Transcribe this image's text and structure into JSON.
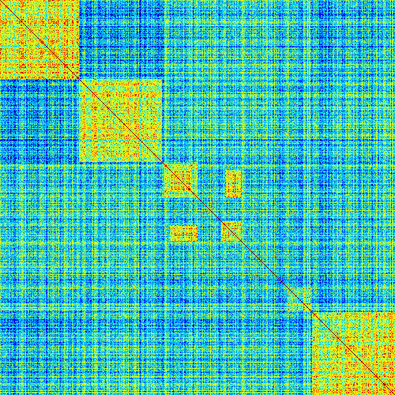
{
  "chart_data": {
    "type": "heatmap",
    "title": "",
    "xlabel": "",
    "ylabel": "",
    "grid": false,
    "legend": "none",
    "matrix_size": 500,
    "symmetric": true,
    "value_range": [
      0,
      1
    ],
    "diagonal_value": 1.0,
    "background_value": 0.38,
    "colormap": [
      "#00007f",
      "#0000ff",
      "#007fff",
      "#00bfff",
      "#27d3c8",
      "#7fff7f",
      "#d7ff1f",
      "#ffff00",
      "#ff7f00",
      "#ff0000",
      "#7f0000"
    ],
    "blocks": [
      {
        "start": 0,
        "end": 100,
        "mean": 0.62
      },
      {
        "start": 100,
        "end": 205,
        "mean": 0.6
      },
      {
        "start": 205,
        "end": 250,
        "mean": 0.56
      },
      {
        "start": 215,
        "end": 242,
        "mean": 0.74
      },
      {
        "start": 280,
        "end": 305,
        "mean": 0.66
      },
      {
        "start": 365,
        "end": 395,
        "mean": 0.55
      },
      {
        "start": 395,
        "end": 500,
        "mean": 0.62
      }
    ],
    "cross_blocks": [
      {
        "rows": [
          215,
          250
        ],
        "cols": [
          285,
          305
        ],
        "mean": 0.7
      },
      {
        "rows": [
          0,
          100
        ],
        "cols": [
          100,
          205
        ],
        "mean": 0.28
      },
      {
        "rows": [
          0,
          100
        ],
        "cols": [
          395,
          500
        ],
        "mean": 0.33
      }
    ]
  }
}
